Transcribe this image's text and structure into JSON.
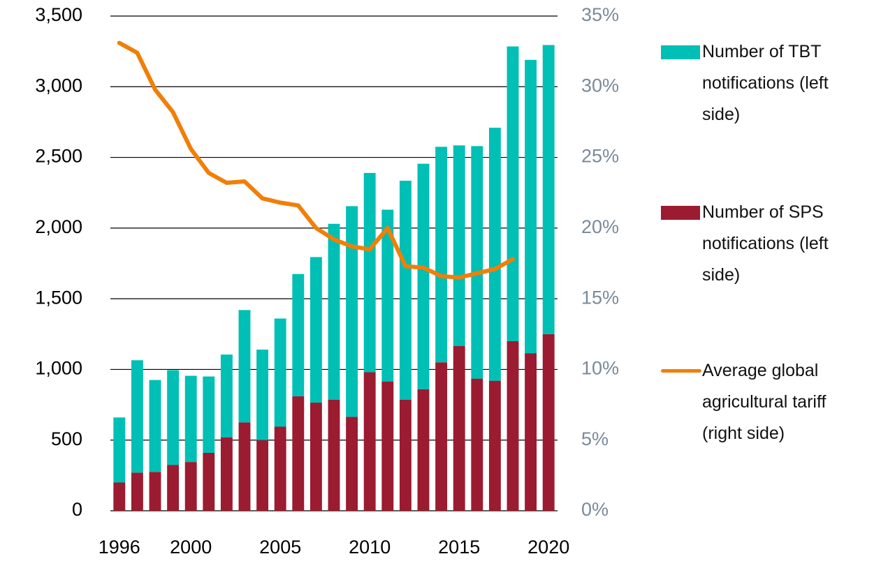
{
  "chart_data": {
    "type": "bar",
    "stacked": true,
    "categories": [
      "1996",
      null,
      null,
      null,
      "2000",
      null,
      null,
      null,
      null,
      "2005",
      null,
      null,
      null,
      null,
      "2010",
      null,
      null,
      null,
      null,
      "2015",
      null,
      null,
      null,
      null,
      "2020"
    ],
    "series": [
      {
        "name": "Number of SPS notifications (left side)",
        "color": "#9b1b30",
        "values": [
          200,
          270,
          275,
          325,
          345,
          410,
          520,
          625,
          500,
          595,
          810,
          765,
          785,
          665,
          980,
          915,
          785,
          860,
          1050,
          1165,
          935,
          920,
          1200,
          1115,
          1250
        ]
      },
      {
        "name": "Number of TBT notifications (left side)",
        "color": "#00bfb5",
        "values": [
          460,
          795,
          650,
          670,
          610,
          540,
          585,
          795,
          640,
          765,
          865,
          1030,
          1245,
          1490,
          1410,
          1215,
          1550,
          1595,
          1525,
          1420,
          1645,
          1790,
          2085,
          2075,
          2045
        ]
      },
      {
        "name": "Average global agricultural tariff (right side)",
        "color": "#f07f09",
        "type": "line",
        "axis": "y2",
        "values": [
          33.1,
          32.4,
          29.8,
          28.2,
          25.6,
          23.9,
          23.2,
          23.3,
          22.1,
          21.8,
          21.6,
          20.0,
          19.2,
          18.7,
          18.5,
          20.0,
          17.3,
          17.2,
          16.6,
          16.5,
          16.8,
          17.1,
          17.8,
          null,
          null
        ]
      }
    ],
    "ylim": [
      0,
      3500
    ],
    "yticks": [
      0,
      500,
      {
        "value": 1000,
        "label": "1,000"
      },
      {
        "value": 1500,
        "label": "1,500"
      },
      {
        "value": 2000,
        "label": "2,000"
      },
      {
        "value": 2500,
        "label": "2,500"
      },
      {
        "value": 3000,
        "label": "3,000"
      },
      {
        "value": 3500,
        "label": "3,500"
      }
    ],
    "y2lim": [
      0,
      35
    ],
    "y2ticks": [
      {
        "value": 0,
        "label": "0%"
      },
      {
        "value": 5,
        "label": "5%"
      },
      {
        "value": 10,
        "label": "10%"
      },
      {
        "value": 15,
        "label": "15%"
      },
      {
        "value": 20,
        "label": "20%"
      },
      {
        "value": 25,
        "label": "25%"
      },
      {
        "value": 30,
        "label": "30%"
      },
      {
        "value": 35,
        "label": "35%"
      }
    ],
    "grid": true,
    "legend": "right"
  }
}
